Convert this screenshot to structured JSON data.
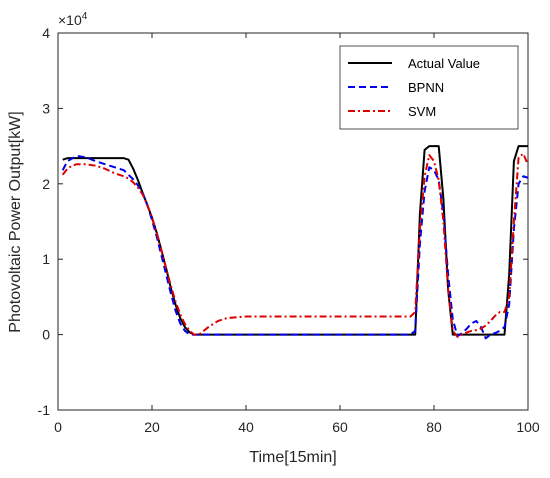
{
  "chart_data": {
    "type": "line",
    "title": "",
    "xlabel": "Time[15min]",
    "ylabel": "Photovoltaic Power Output[kW]",
    "y_multiplier": "×10",
    "y_multiplier_exponent": "4",
    "xlim": [
      0,
      100
    ],
    "ylim": [
      -1,
      4
    ],
    "xticks": [
      0,
      20,
      40,
      60,
      80,
      100
    ],
    "yticks": [
      -1,
      0,
      1,
      2,
      3,
      4
    ],
    "grid": false,
    "legend_position": "top-right",
    "series": [
      {
        "name": "Actual Value",
        "color": "#000000",
        "dash": "solid",
        "x": [
          1,
          2,
          4,
          6,
          8,
          10,
          12,
          14,
          15,
          16,
          17,
          18,
          19,
          20,
          21,
          22,
          23,
          24,
          25,
          26,
          27,
          28,
          29,
          30,
          31,
          32,
          40,
          50,
          60,
          70,
          76,
          77,
          78,
          79,
          80,
          81,
          82,
          83,
          84,
          85,
          90,
          95,
          96,
          97,
          98,
          99,
          100
        ],
        "values": [
          2.32,
          2.34,
          2.34,
          2.34,
          2.34,
          2.34,
          2.34,
          2.34,
          2.32,
          2.2,
          2.05,
          1.88,
          1.72,
          1.55,
          1.35,
          1.12,
          0.88,
          0.62,
          0.4,
          0.22,
          0.1,
          0.03,
          0.0,
          0.0,
          0.0,
          0.0,
          0.0,
          0.0,
          0.0,
          0.0,
          0.0,
          1.6,
          2.45,
          2.5,
          2.5,
          2.5,
          1.8,
          0.6,
          0.0,
          0.0,
          0.0,
          0.0,
          0.8,
          2.3,
          2.5,
          2.5,
          2.5
        ]
      },
      {
        "name": "BPNN",
        "color": "#0000ee",
        "dash": "dashed",
        "x": [
          1,
          2,
          4,
          6,
          8,
          10,
          12,
          14,
          15,
          16,
          17,
          18,
          19,
          20,
          21,
          22,
          23,
          24,
          25,
          26,
          27,
          28,
          29,
          30,
          31,
          32,
          40,
          50,
          60,
          70,
          75,
          76,
          77,
          78,
          79,
          80,
          81,
          82,
          83,
          84,
          85,
          86,
          87,
          88,
          89,
          90,
          91,
          92,
          93,
          94,
          95,
          96,
          97,
          98,
          99,
          100
        ],
        "values": [
          2.18,
          2.3,
          2.37,
          2.35,
          2.3,
          2.26,
          2.22,
          2.18,
          2.12,
          2.06,
          1.98,
          1.88,
          1.72,
          1.52,
          1.3,
          1.05,
          0.8,
          0.55,
          0.32,
          0.15,
          0.05,
          0.0,
          0.0,
          0.0,
          0.0,
          0.0,
          0.0,
          0.0,
          0.0,
          0.0,
          0.0,
          0.05,
          1.2,
          1.9,
          2.22,
          2.18,
          2.05,
          1.6,
          0.8,
          0.2,
          -0.02,
          0.02,
          0.08,
          0.15,
          0.18,
          0.1,
          -0.05,
          0.0,
          0.02,
          0.05,
          0.1,
          0.4,
          1.4,
          2.0,
          2.1,
          2.08
        ]
      },
      {
        "name": "SVM",
        "color": "#dd0000",
        "dash": "dashdot",
        "x": [
          1,
          2,
          3,
          4,
          6,
          8,
          10,
          12,
          14,
          15,
          16,
          17,
          18,
          19,
          20,
          21,
          22,
          23,
          24,
          25,
          26,
          27,
          28,
          29,
          30,
          31,
          32,
          33,
          34,
          35,
          36,
          38,
          40,
          45,
          50,
          60,
          70,
          75,
          76,
          77,
          78,
          79,
          80,
          81,
          82,
          83,
          84,
          85,
          86,
          87,
          88,
          89,
          90,
          91,
          92,
          93,
          94,
          95,
          96,
          97,
          98,
          99,
          100
        ],
        "values": [
          2.12,
          2.2,
          2.24,
          2.26,
          2.26,
          2.24,
          2.2,
          2.14,
          2.1,
          2.07,
          2.02,
          1.95,
          1.86,
          1.72,
          1.55,
          1.35,
          1.12,
          0.88,
          0.65,
          0.44,
          0.27,
          0.14,
          0.05,
          0.0,
          0.0,
          0.05,
          0.1,
          0.14,
          0.18,
          0.2,
          0.22,
          0.23,
          0.24,
          0.24,
          0.24,
          0.24,
          0.24,
          0.24,
          0.3,
          1.4,
          2.1,
          2.38,
          2.3,
          2.05,
          1.5,
          0.6,
          0.05,
          -0.03,
          0.0,
          0.03,
          0.05,
          0.06,
          0.08,
          0.12,
          0.18,
          0.25,
          0.3,
          0.3,
          0.5,
          1.5,
          2.35,
          2.4,
          2.25
        ]
      }
    ]
  }
}
